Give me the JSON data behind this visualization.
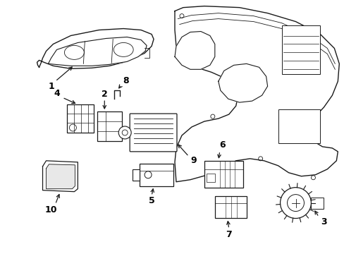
{
  "background_color": "#ffffff",
  "line_color": "#1a1a1a",
  "text_color": "#000000",
  "figsize": [
    4.89,
    3.6
  ],
  "dpi": 100
}
